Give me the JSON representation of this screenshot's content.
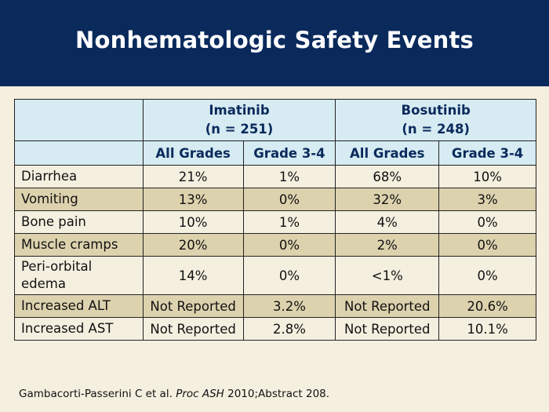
{
  "slide": {
    "title": "Nonhematologic Safety Events"
  },
  "table": {
    "groups": [
      {
        "name": "Imatinib",
        "n": "(n = 251)"
      },
      {
        "name": "Bosutinib",
        "n": "(n = 248)"
      }
    ],
    "subheaders": [
      "All Grades",
      "Grade 3-4",
      "All Grades",
      "Grade 3-4"
    ],
    "rows": [
      {
        "label": "Diarrhea",
        "values": [
          "21%",
          "1%",
          "68%",
          "10%"
        ]
      },
      {
        "label": "Vomiting",
        "values": [
          "13%",
          "0%",
          "32%",
          "3%"
        ]
      },
      {
        "label": "Bone pain",
        "values": [
          "10%",
          "1%",
          "4%",
          "0%"
        ]
      },
      {
        "label": "Muscle cramps",
        "values": [
          "20%",
          "0%",
          "2%",
          "0%"
        ]
      },
      {
        "label": "Peri-orbital edema",
        "values": [
          "14%",
          "0%",
          "<1%",
          "0%"
        ]
      },
      {
        "label": "Increased ALT",
        "values": [
          "Not Reported",
          "3.2%",
          "Not Reported",
          "20.6%"
        ]
      },
      {
        "label": "Increased AST",
        "values": [
          "Not Reported",
          "2.8%",
          "Not Reported",
          "10.1%"
        ]
      }
    ]
  },
  "citation": {
    "authors": "Gambacorti-Passerini C et al.",
    "journal": "Proc ASH",
    "details": "2010;Abstract 208."
  },
  "colors": {
    "title_bar": "#0a2a5c",
    "header_bg": "#d6ebf2",
    "row_light": "#f4efdf",
    "row_dark": "#ddd2ae",
    "header_text": "#0a2a5c"
  }
}
